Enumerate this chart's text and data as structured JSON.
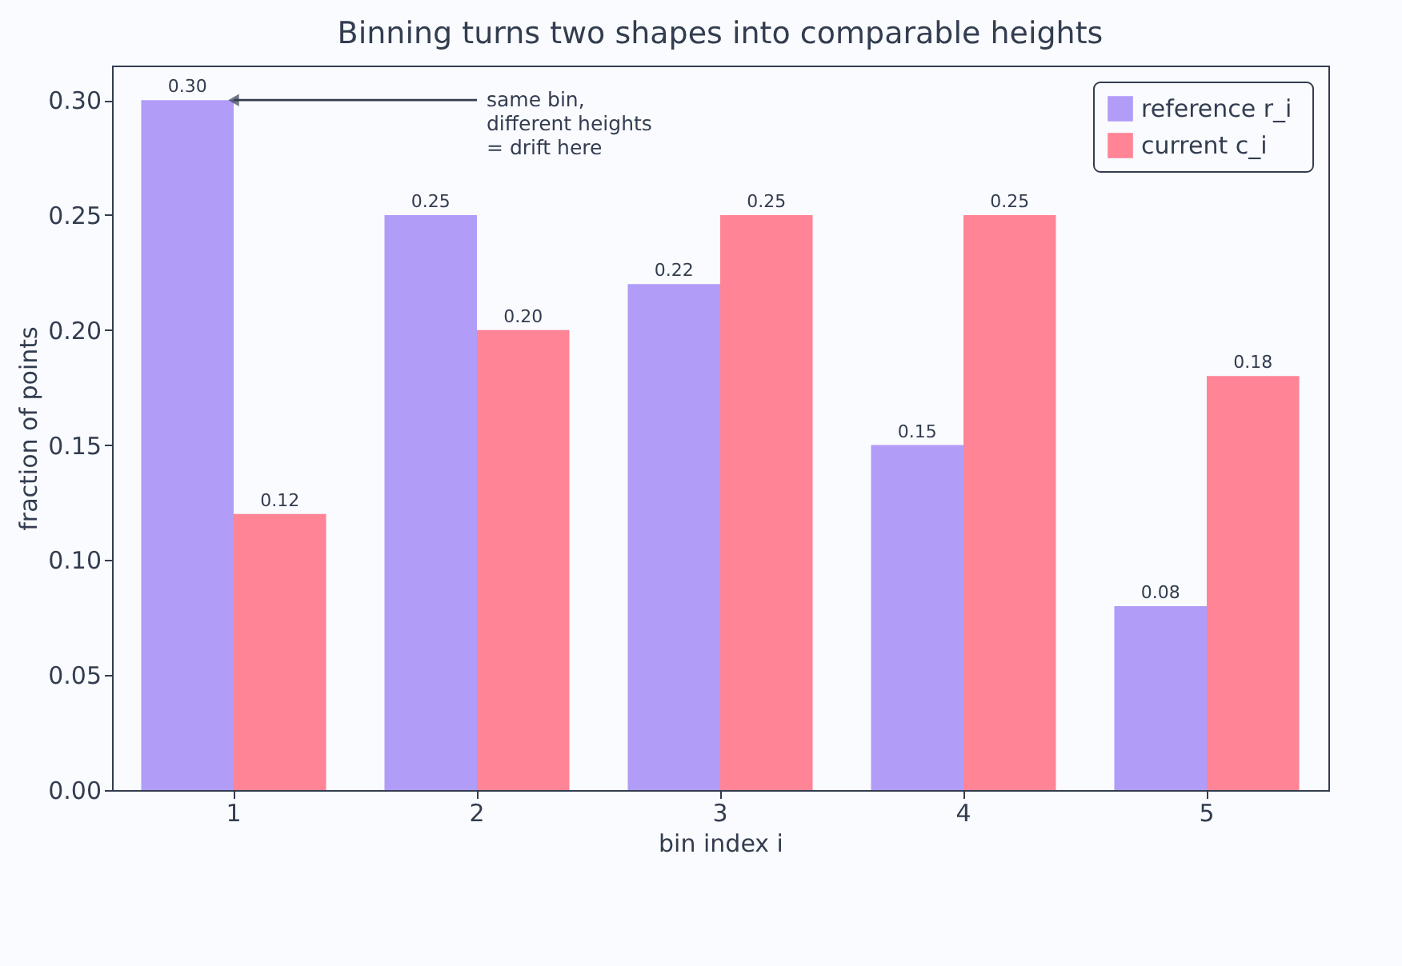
{
  "chart_data": {
    "type": "bar",
    "title": "Binning turns two shapes into comparable heights",
    "xlabel": "bin index  i",
    "ylabel": "fraction of points",
    "categories": [
      "1",
      "2",
      "3",
      "4",
      "5"
    ],
    "series": [
      {
        "name": "reference  r_i",
        "color": "#b19cf8",
        "values": [
          0.3,
          0.25,
          0.22,
          0.15,
          0.08
        ],
        "value_labels": [
          "0.30",
          "0.25",
          "0.22",
          "0.15",
          "0.08"
        ]
      },
      {
        "name": "current  c_i",
        "color": "#ff8496",
        "values": [
          0.12,
          0.2,
          0.25,
          0.25,
          0.18
        ],
        "value_labels": [
          "0.12",
          "0.20",
          "0.25",
          "0.25",
          "0.18"
        ]
      }
    ],
    "ylim": [
      0,
      0.315
    ],
    "yticks": [
      {
        "value": 0,
        "label": "0.00"
      },
      {
        "value": 0.05,
        "label": "0.05"
      },
      {
        "value": 0.1,
        "label": "0.10"
      },
      {
        "value": 0.15,
        "label": "0.15"
      },
      {
        "value": 0.2,
        "label": "0.20"
      },
      {
        "value": 0.25,
        "label": "0.25"
      },
      {
        "value": 0.3,
        "label": "0.30"
      }
    ],
    "annotations": [
      {
        "text": "same bin,\ndifferent heights\n= drift here",
        "x": "1",
        "y": 0.3
      }
    ],
    "legend": "top right",
    "grid": false
  }
}
